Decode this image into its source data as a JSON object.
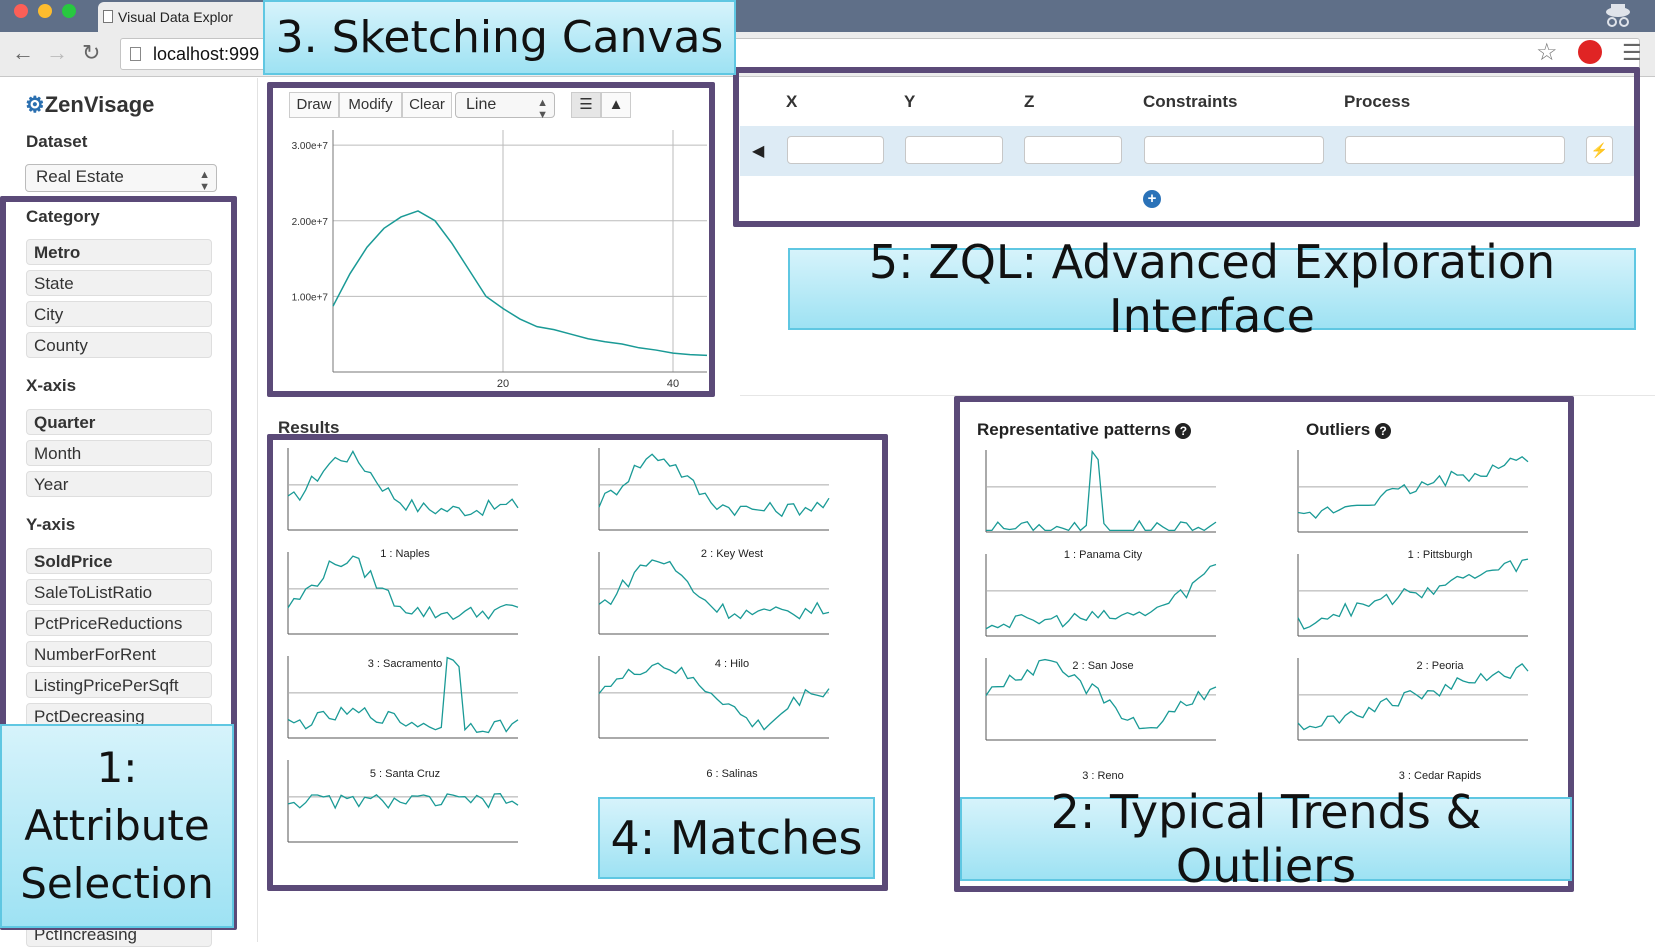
{
  "browser": {
    "tab_title": "Visual Data Explor",
    "url": "localhost:999"
  },
  "app": {
    "logo": "ZenVisage",
    "dataset_label": "Dataset",
    "dataset_value": "Real Estate"
  },
  "sidebar": {
    "category_label": "Category",
    "category_items": [
      "Metro",
      "State",
      "City",
      "County"
    ],
    "xaxis_label": "X-axis",
    "xaxis_items": [
      "Quarter",
      "Month",
      "Year"
    ],
    "yaxis_label": "Y-axis",
    "yaxis_items": [
      "SoldPrice",
      "SaleToListRatio",
      "PctPriceReductions",
      "NumberForRent",
      "ListingPricePerSqft",
      "PctDecreasing",
      "PctIncreasing"
    ]
  },
  "sketch": {
    "buttons": [
      "Draw",
      "Modify",
      "Clear"
    ],
    "chart_type": "Line"
  },
  "zql": {
    "headers": [
      "X",
      "Y",
      "Z",
      "Constraints",
      "Process"
    ]
  },
  "results": {
    "title": "Results",
    "labels": [
      "1 : Naples",
      "2 : Key West",
      "3 : Sacramento",
      "4 : Hilo",
      "5 : Santa Cruz",
      "6 : Salinas"
    ]
  },
  "patterns": {
    "rep_title": "Representative patterns",
    "out_title": "Outliers",
    "rep_labels": [
      "1 : Panama City",
      "2 : San Jose",
      "3 : Reno"
    ],
    "out_labels": [
      "1 : Pittsburgh",
      "2 : Peoria",
      "3 : Cedar Rapids"
    ]
  },
  "callouts": {
    "c1": [
      "1:",
      "Attribute",
      "Selection"
    ],
    "c2": "2: Typical Trends & Outliers",
    "c3": "3. Sketching Canvas",
    "c4": "4: Matches",
    "c5": "5: ZQL: Advanced Exploration Interface"
  },
  "chart_data": {
    "type": "line",
    "title": "",
    "xlabel": "",
    "ylabel": "",
    "xlim": [
      0,
      44
    ],
    "ylim": [
      0,
      32000000
    ],
    "x_ticks": [
      20,
      40
    ],
    "x_tick_labels": [
      "20",
      "40"
    ],
    "y_ticks": [
      10000000,
      20000000,
      30000000
    ],
    "y_tick_labels": [
      "1.00e+7",
      "2.00e+7",
      "3.00e+7"
    ],
    "grid": true,
    "x": [
      0,
      2,
      4,
      6,
      8,
      10,
      12,
      14,
      16,
      18,
      20,
      22,
      24,
      26,
      28,
      30,
      32,
      34,
      36,
      38,
      40,
      42,
      44
    ],
    "y": [
      8700000,
      13000000,
      16500000,
      19000000,
      20500000,
      21300000,
      20000000,
      17000000,
      13500000,
      10000000,
      8400000,
      7000000,
      6000000,
      5600000,
      5000000,
      4400000,
      4000000,
      3700000,
      3200000,
      2900000,
      2500000,
      2300000,
      2200000
    ]
  },
  "colors": {
    "line": "#1a9a96",
    "frame": "#5b4a78",
    "callout": "#aee6f5"
  }
}
